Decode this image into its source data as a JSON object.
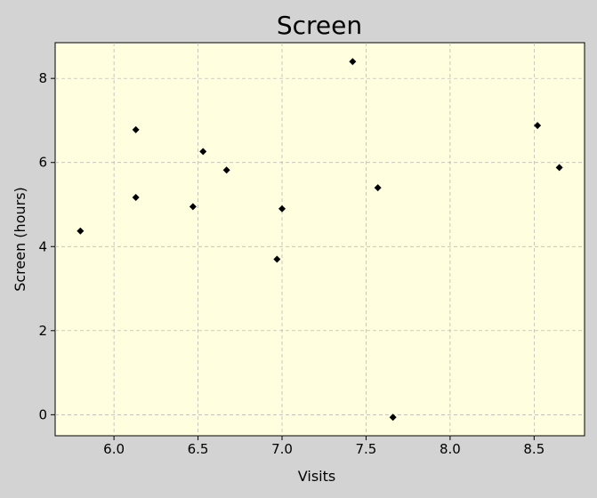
{
  "chart_data": {
    "type": "scatter",
    "title": "Screen",
    "xlabel": "Visits",
    "ylabel": "Screen (hours)",
    "xlim": [
      5.65,
      8.8
    ],
    "ylim": [
      -0.5,
      8.85
    ],
    "xticks": [
      6.0,
      6.5,
      7.0,
      7.5,
      8.0,
      8.5
    ],
    "xtick_labels": [
      "6.0",
      "6.5",
      "7.0",
      "7.5",
      "8.0",
      "8.5"
    ],
    "yticks": [
      0,
      2,
      4,
      6,
      8
    ],
    "ytick_labels": [
      "0",
      "2",
      "4",
      "6",
      "8"
    ],
    "grid": true,
    "marker": "diamond",
    "colors": {
      "background": "#d3d3d3",
      "plot_area": "#ffffe0",
      "marker": "#000000",
      "grid": "#b0b0b0"
    },
    "x": [
      5.8,
      6.13,
      6.13,
      6.47,
      6.53,
      6.67,
      6.97,
      7.0,
      7.42,
      7.57,
      7.66,
      8.52,
      8.65
    ],
    "y": [
      4.37,
      6.78,
      5.17,
      4.95,
      6.26,
      5.82,
      3.7,
      4.9,
      8.4,
      5.4,
      -0.06,
      6.88,
      5.88
    ]
  }
}
